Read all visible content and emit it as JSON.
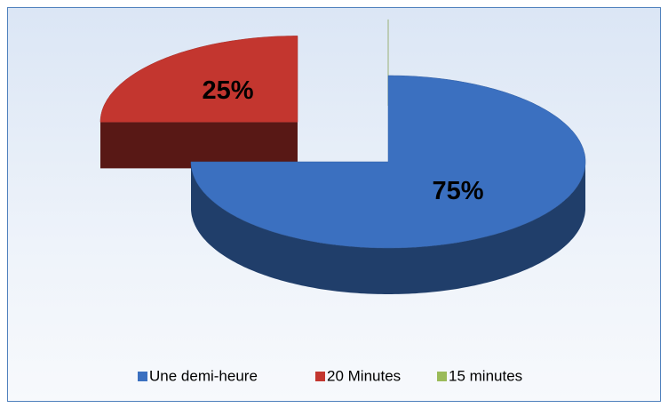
{
  "chart_data": {
    "type": "pie",
    "categories": [
      "Une demi-heure",
      "20 Minutes",
      "15 minutes"
    ],
    "values": [
      75,
      25,
      0
    ],
    "value_labels": [
      "75%",
      "25%",
      null
    ],
    "colors": [
      "#3b70c0",
      "#c3362f",
      "#9bbb59"
    ],
    "legend": "bottom"
  }
}
